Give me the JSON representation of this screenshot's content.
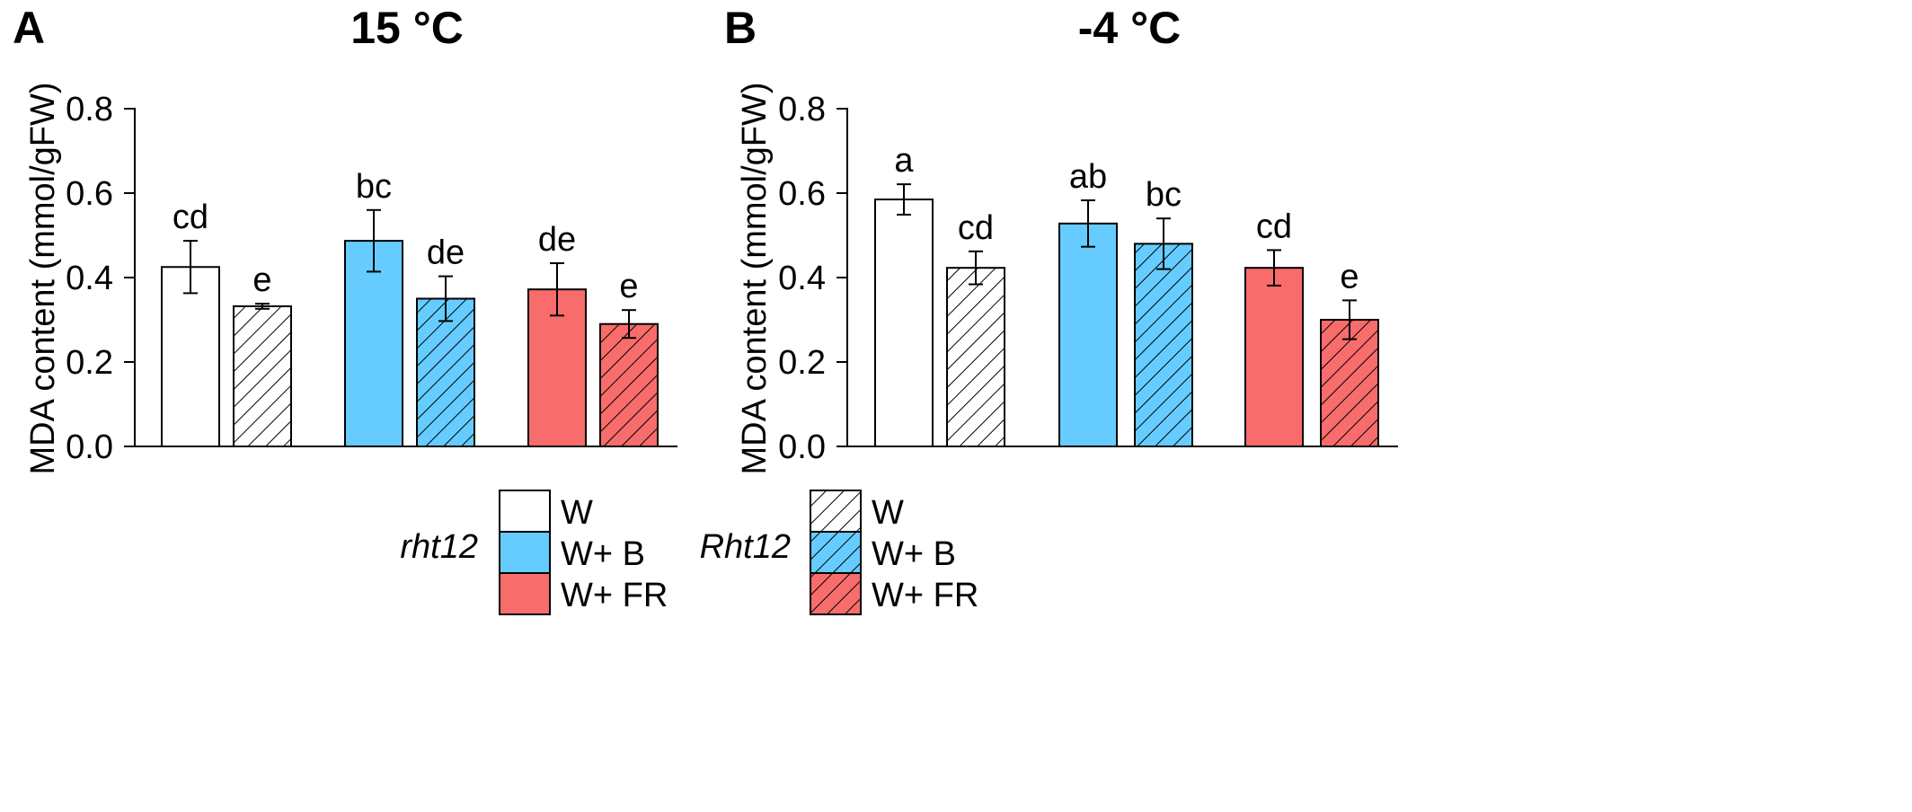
{
  "legend": {
    "groups": [
      {
        "genotype": "rht12",
        "items": [
          "W",
          "W+ B",
          "W+ FR"
        ]
      },
      {
        "genotype": "Rht12",
        "items": [
          "W",
          "W+ B",
          "W+ FR"
        ]
      }
    ]
  },
  "colors": {
    "W": "#ffffff",
    "W+ B": "#66ccff",
    "W+ FR": "#f86c6c",
    "outline": "#000000",
    "hatch": "#000000"
  },
  "chart_data": [
    {
      "type": "bar",
      "panel": "A",
      "title": "15 °C",
      "ylabel": "MDA content (mmol/gFW)",
      "ylim": [
        0,
        0.8
      ],
      "yticks": [
        "0.0",
        "0.2",
        "0.4",
        "0.6",
        "0.8"
      ],
      "bars": [
        {
          "genotype": "rht12",
          "treatment": "W",
          "hatched": false,
          "value": 0.425,
          "error": 0.062,
          "label": "cd"
        },
        {
          "genotype": "Rht12",
          "treatment": "W",
          "hatched": true,
          "value": 0.332,
          "error": 0.006,
          "label": "e"
        },
        {
          "genotype": "rht12",
          "treatment": "W+ B",
          "hatched": false,
          "value": 0.487,
          "error": 0.073,
          "label": "bc"
        },
        {
          "genotype": "Rht12",
          "treatment": "W+ B",
          "hatched": true,
          "value": 0.35,
          "error": 0.053,
          "label": "de"
        },
        {
          "genotype": "rht12",
          "treatment": "W+ FR",
          "hatched": false,
          "value": 0.372,
          "error": 0.062,
          "label": "de"
        },
        {
          "genotype": "Rht12",
          "treatment": "W+ FR",
          "hatched": true,
          "value": 0.29,
          "error": 0.033,
          "label": "e"
        }
      ]
    },
    {
      "type": "bar",
      "panel": "B",
      "title": "-4 °C",
      "ylabel": "MDA content (mmol/gFW)",
      "ylim": [
        0,
        0.8
      ],
      "yticks": [
        "0.0",
        "0.2",
        "0.4",
        "0.6",
        "0.8"
      ],
      "bars": [
        {
          "genotype": "rht12",
          "treatment": "W",
          "hatched": false,
          "value": 0.585,
          "error": 0.036,
          "label": "a"
        },
        {
          "genotype": "Rht12",
          "treatment": "W",
          "hatched": true,
          "value": 0.423,
          "error": 0.039,
          "label": "cd"
        },
        {
          "genotype": "rht12",
          "treatment": "W+ B",
          "hatched": false,
          "value": 0.528,
          "error": 0.055,
          "label": "ab"
        },
        {
          "genotype": "Rht12",
          "treatment": "W+ B",
          "hatched": true,
          "value": 0.48,
          "error": 0.06,
          "label": "bc"
        },
        {
          "genotype": "rht12",
          "treatment": "W+ FR",
          "hatched": false,
          "value": 0.423,
          "error": 0.042,
          "label": "cd"
        },
        {
          "genotype": "Rht12",
          "treatment": "W+ FR",
          "hatched": true,
          "value": 0.3,
          "error": 0.046,
          "label": "e"
        }
      ]
    }
  ]
}
